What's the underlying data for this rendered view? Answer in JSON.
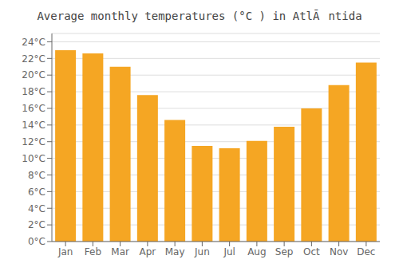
{
  "chart_data": {
    "type": "bar",
    "title": "Average monthly temperatures (°C ) in AtlÃntida",
    "categories": [
      "Jan",
      "Feb",
      "Mar",
      "Apr",
      "May",
      "Jun",
      "Jul",
      "Aug",
      "Sep",
      "Oct",
      "Nov",
      "Dec"
    ],
    "values": [
      23.0,
      22.6,
      21.0,
      17.6,
      14.6,
      11.5,
      11.2,
      12.1,
      13.8,
      16.0,
      18.8,
      21.5
    ],
    "color": "#F5A623",
    "ylim": [
      0,
      25
    ],
    "yticks": [
      {
        "value": 0,
        "label": "0°C"
      },
      {
        "value": 2,
        "label": "2°C"
      },
      {
        "value": 4,
        "label": "4°C"
      },
      {
        "value": 6,
        "label": "6°C"
      },
      {
        "value": 8,
        "label": "8°C"
      },
      {
        "value": 10,
        "label": "10°C"
      },
      {
        "value": 12,
        "label": "12°C"
      },
      {
        "value": 14,
        "label": "14°C"
      },
      {
        "value": 16,
        "label": "16°C"
      },
      {
        "value": 18,
        "label": "18°C"
      },
      {
        "value": 20,
        "label": "20°C"
      },
      {
        "value": 22,
        "label": "22°C"
      },
      {
        "value": 24,
        "label": "24°C"
      }
    ],
    "grid": true
  }
}
